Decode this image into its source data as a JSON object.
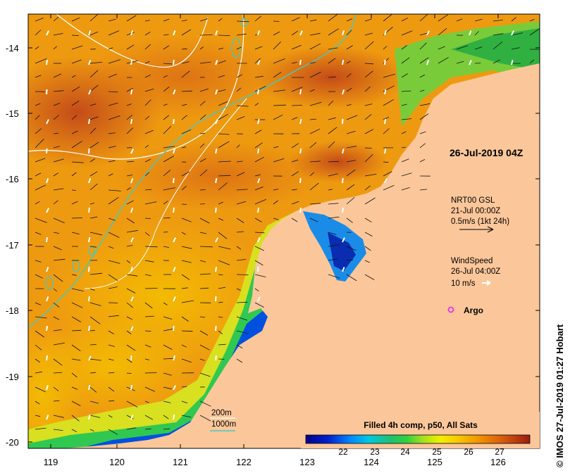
{
  "map": {
    "date_label": "26-Jul-2019 04Z",
    "lat_ticks": [
      "-14",
      "-15",
      "-16",
      "-17",
      "-18",
      "-19",
      "-20"
    ],
    "lon_ticks": [
      "119",
      "120",
      "121",
      "122",
      "123",
      "124",
      "125",
      "126"
    ],
    "current_legend": {
      "line1": "NRT00 GSL",
      "line2": "21-Jul 00:00Z",
      "line3": "0.5m/s (1kt 24h)"
    },
    "wind_legend": {
      "line1": "WindSpeed",
      "line2": "26-Jul 04:00Z",
      "line3": "10 m/s"
    },
    "argo_label": "Argo",
    "depth_legend": {
      "line1": "200m",
      "line2": "1000m"
    },
    "colorbar": {
      "title": "Filled 4h comp, p50, All Sats",
      "ticks": [
        "22",
        "23",
        "24",
        "25",
        "26",
        "27"
      ]
    },
    "credit": "© IMOS 27-Jul-2019 01:27 Hobart"
  },
  "colors": {
    "land": "#fbc79a",
    "bathy_200m": "#ffffff",
    "bathy_1000m": "#45c9c1",
    "argo": "#e040e0",
    "current_arrow": "#000000",
    "wind_arrow": "#ffffff"
  }
}
